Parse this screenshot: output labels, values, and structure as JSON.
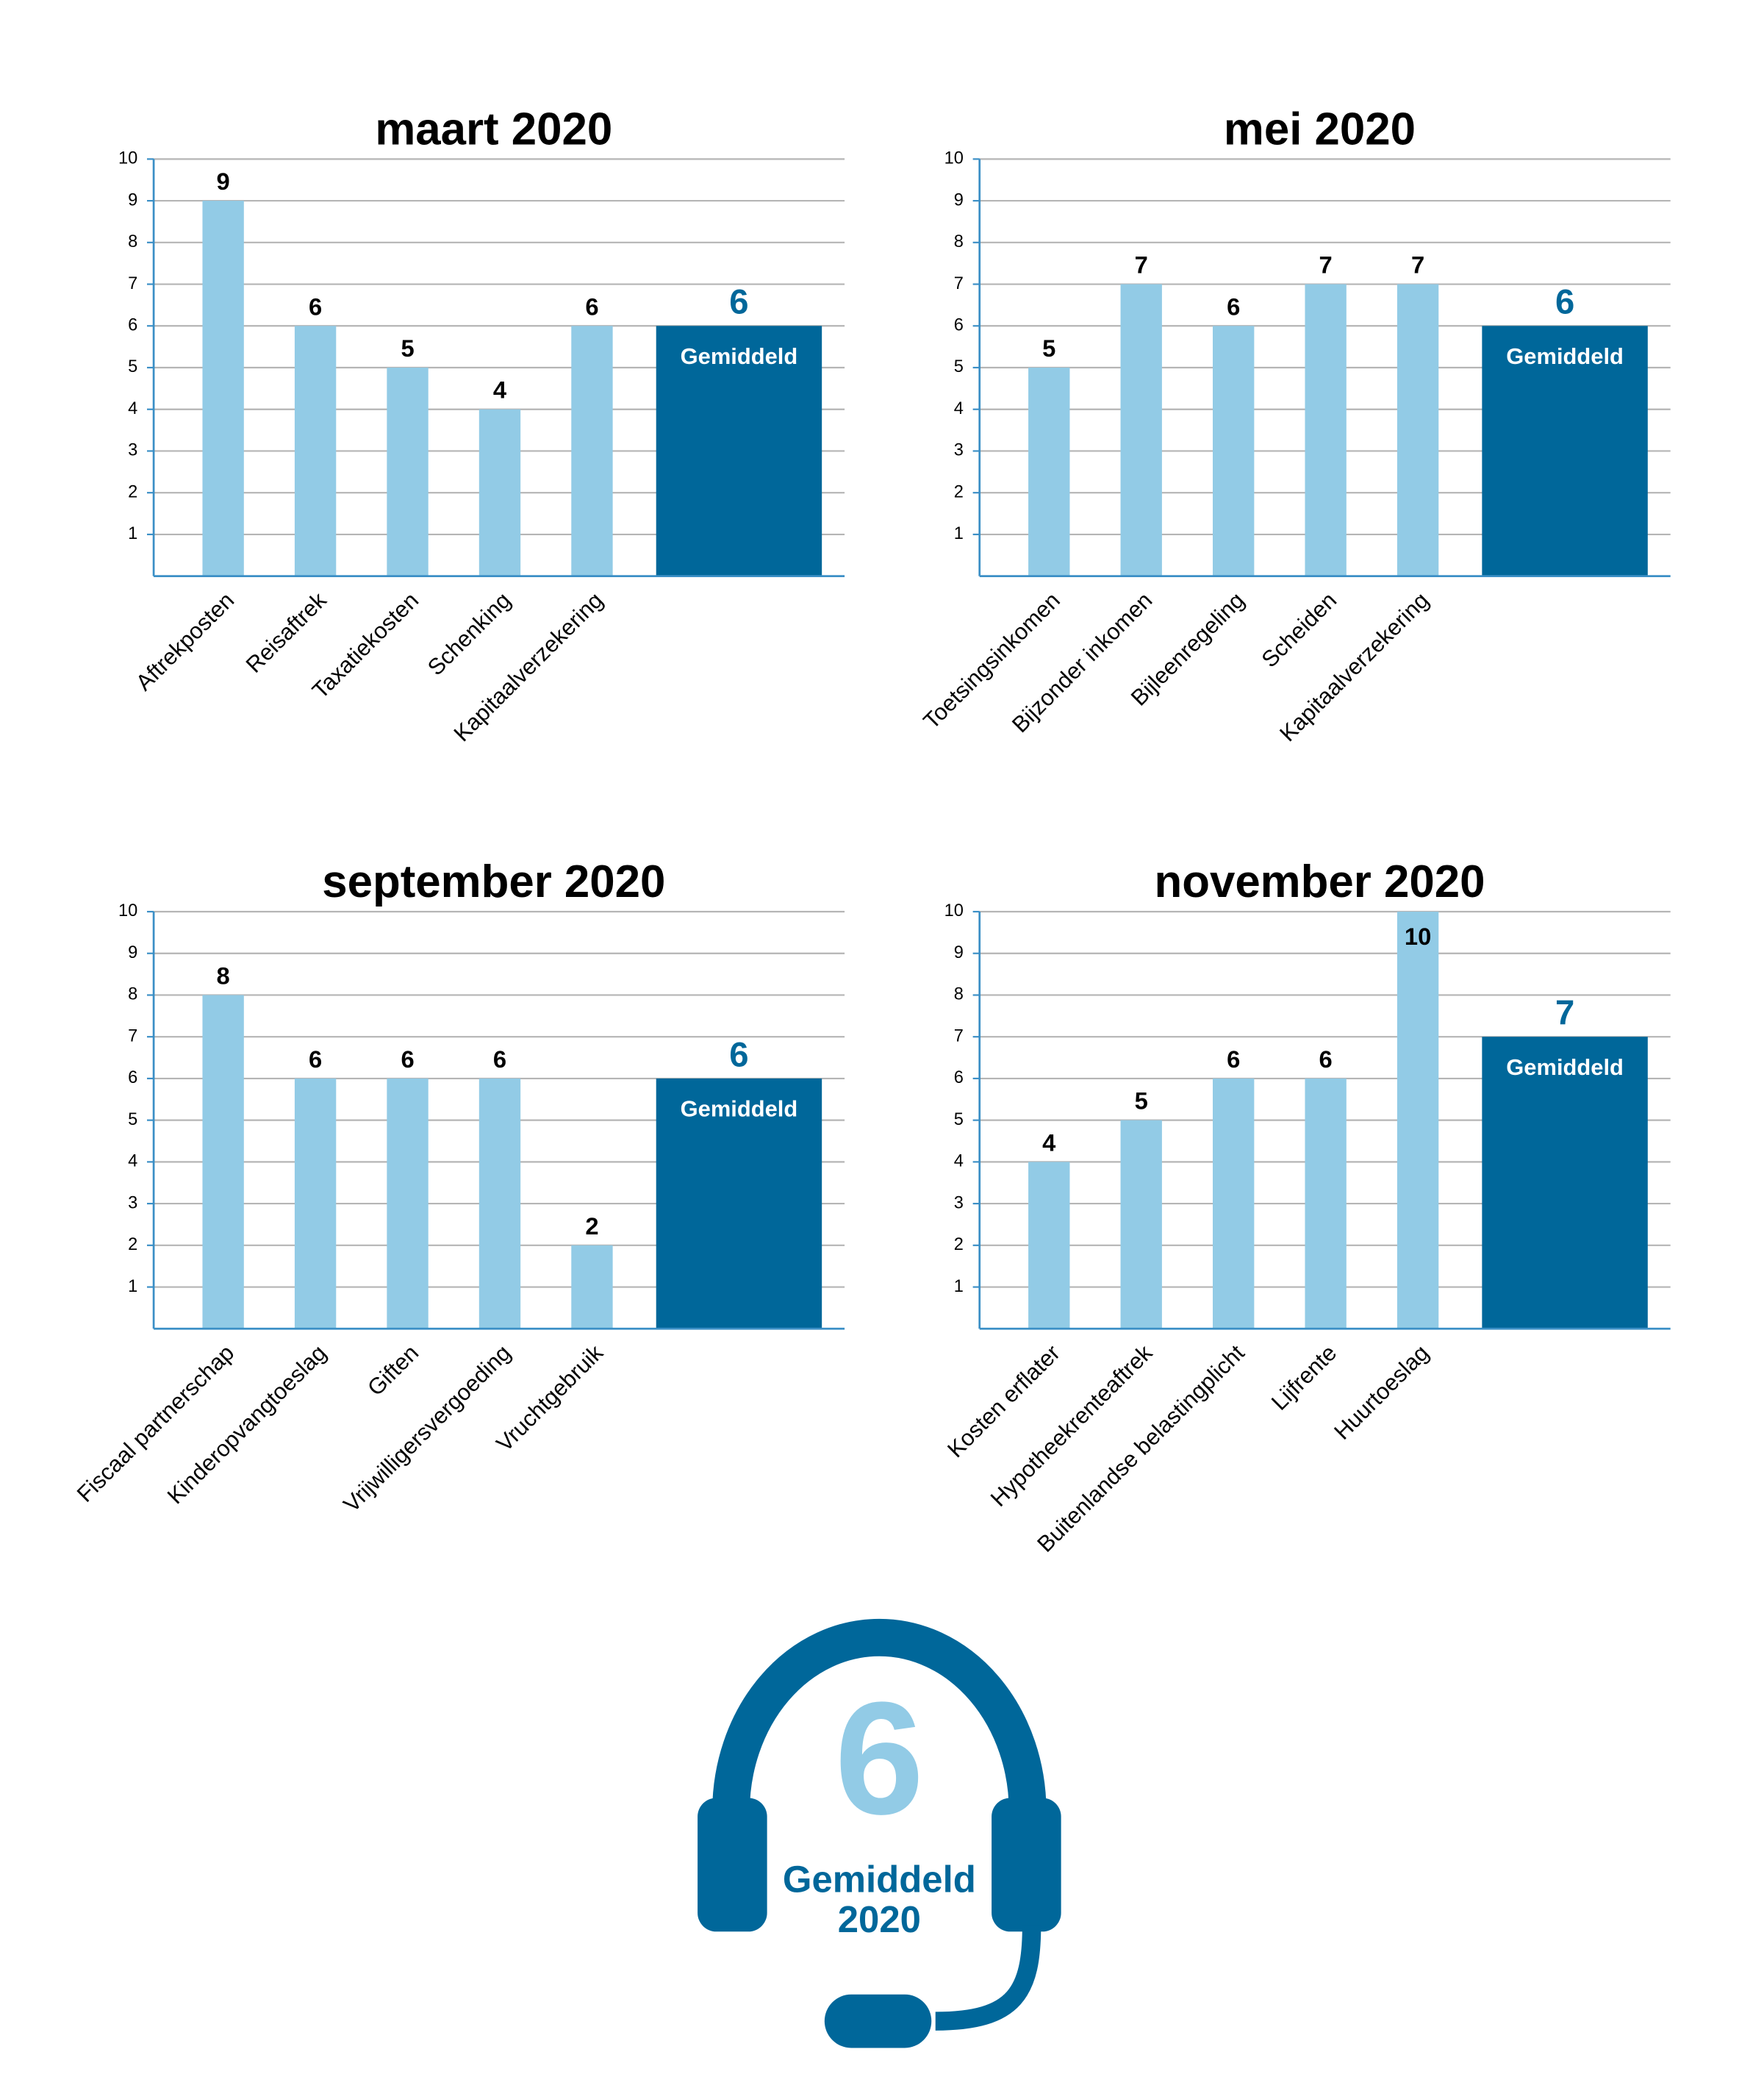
{
  "chart_data": [
    {
      "type": "bar",
      "title": "maart 2020",
      "categories": [
        "Aftrekposten",
        "Reisaftrek",
        "Taxatiekosten",
        "Schenking",
        "Kapitaalverzekering"
      ],
      "values": [
        9,
        6,
        5,
        4,
        6
      ],
      "color": "#92cbe6",
      "average": {
        "label": "Gemiddeld",
        "value": 6,
        "color": "#00679a"
      },
      "ylim": [
        0,
        10
      ],
      "yticks": [
        1,
        2,
        3,
        4,
        5,
        6,
        7,
        8,
        9,
        10
      ],
      "grid": true
    },
    {
      "type": "bar",
      "title": "mei 2020",
      "categories": [
        "Toetsingsinkomen",
        "Bijzonder inkomen",
        "Bijleenregeling",
        "Scheiden",
        "Kapitaalverzekering"
      ],
      "values": [
        5,
        7,
        6,
        7,
        7
      ],
      "color": "#92cbe6",
      "average": {
        "label": "Gemiddeld",
        "value": 6,
        "color": "#00679a"
      },
      "ylim": [
        0,
        10
      ],
      "yticks": [
        1,
        2,
        3,
        4,
        5,
        6,
        7,
        8,
        9,
        10
      ],
      "grid": true
    },
    {
      "type": "bar",
      "title": "september 2020",
      "categories": [
        "Fiscaal partnerschap",
        "Kinderopvangtoeslag",
        "Giften",
        "Vrijwilligersvergoeding",
        "Vruchtgebruik"
      ],
      "values": [
        8,
        6,
        6,
        6,
        2
      ],
      "color": "#92cbe6",
      "average": {
        "label": "Gemiddeld",
        "value": 6,
        "color": "#00679a"
      },
      "ylim": [
        0,
        10
      ],
      "yticks": [
        1,
        2,
        3,
        4,
        5,
        6,
        7,
        8,
        9,
        10
      ],
      "grid": true
    },
    {
      "type": "bar",
      "title": "november 2020",
      "categories": [
        "Kosten erflater",
        "Hypotheekrenteaftrek",
        "Buitenlandse belastingplicht",
        "Lijfrente",
        "Huurtoeslag"
      ],
      "values": [
        4,
        5,
        6,
        6,
        10
      ],
      "color": "#92cbe6",
      "average": {
        "label": "Gemiddeld",
        "value": 7,
        "color": "#00679a"
      },
      "ylim": [
        0,
        10
      ],
      "yticks": [
        1,
        2,
        3,
        4,
        5,
        6,
        7,
        8,
        9,
        10
      ],
      "grid": true
    }
  ],
  "summary": {
    "value": 6,
    "label": "Gemiddeld",
    "year": "2020"
  }
}
